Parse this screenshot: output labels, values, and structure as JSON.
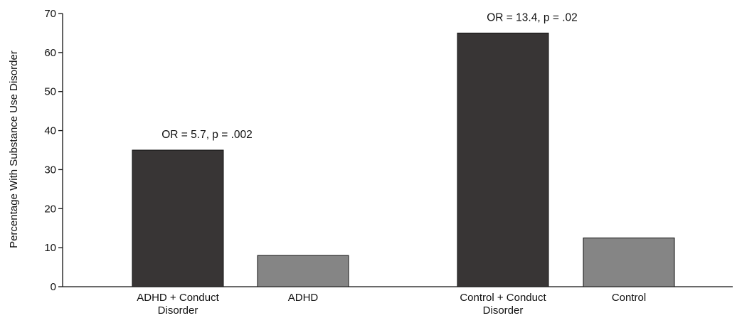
{
  "chart_data": {
    "type": "bar",
    "title": "",
    "xlabel": "",
    "ylabel": "Percentage With Substance Use Disorder",
    "ylim": [
      0,
      70
    ],
    "yticks": [
      0,
      10,
      20,
      30,
      40,
      50,
      60,
      70
    ],
    "grid": false,
    "bars": [
      {
        "label_lines": [
          "ADHD + Conduct",
          "Disorder"
        ],
        "value": 35,
        "color": "#383535"
      },
      {
        "label_lines": [
          "ADHD"
        ],
        "value": 8,
        "color": "#858585"
      },
      {
        "label_lines": [
          "Control + Conduct",
          "Disorder"
        ],
        "value": 65,
        "color": "#383535"
      },
      {
        "label_lines": [
          "Control"
        ],
        "value": 12.5,
        "color": "#858585"
      }
    ],
    "annotations": [
      {
        "text": "OR = 5.7, p = .002",
        "bar_index": 0
      },
      {
        "text": "OR = 13.4, p = .02",
        "bar_index": 2
      }
    ]
  }
}
